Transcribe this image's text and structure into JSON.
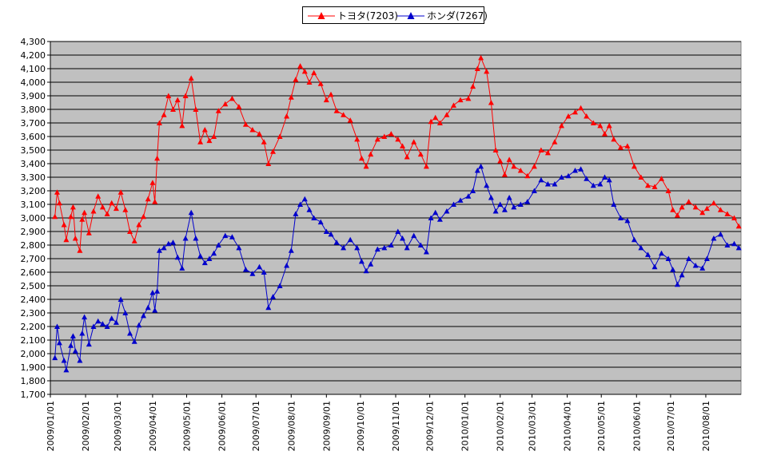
{
  "chart_data": {
    "type": "line",
    "title": "",
    "xlabel": "",
    "ylabel": "",
    "ylim": [
      1700,
      4300
    ],
    "ytick_step": 100,
    "y_tick_labels": [
      "1,700",
      "1,800",
      "1,900",
      "2,000",
      "2,100",
      "2,200",
      "2,300",
      "2,400",
      "2,500",
      "2,600",
      "2,700",
      "2,800",
      "2,900",
      "3,000",
      "3,100",
      "3,200",
      "3,300",
      "3,400",
      "3,500",
      "3,600",
      "3,700",
      "3,800",
      "3,900",
      "4,000",
      "4,100",
      "4,200",
      "4,300"
    ],
    "x_tick_labels": [
      "2009/01/01",
      "2009/02/01",
      "2009/03/01",
      "2009/04/01",
      "2009/05/01",
      "2009/06/01",
      "2009/07/01",
      "2009/08/01",
      "2009/09/01",
      "2009/10/01",
      "2009/11/01",
      "2009/12/01",
      "2010/01/01",
      "2010/02/01",
      "2010/03/01",
      "2010/04/01",
      "2010/05/01",
      "2010/06/01",
      "2010/07/01",
      "2010/08/01"
    ],
    "grid": true,
    "legend_position": "top",
    "plot_background": "#c0c0c0",
    "series": [
      {
        "name": "トヨタ(7203)",
        "color": "#ff0000",
        "points": [
          [
            "2009/01/05",
            3010
          ],
          [
            "2009/01/07",
            3190
          ],
          [
            "2009/01/09",
            3110
          ],
          [
            "2009/01/13",
            2950
          ],
          [
            "2009/01/15",
            2840
          ],
          [
            "2009/01/19",
            3010
          ],
          [
            "2009/01/21",
            3080
          ],
          [
            "2009/01/23",
            2850
          ],
          [
            "2009/01/27",
            2760
          ],
          [
            "2009/01/29",
            2990
          ],
          [
            "2009/01/31",
            3040
          ],
          [
            "2009/02/04",
            2890
          ],
          [
            "2009/02/08",
            3050
          ],
          [
            "2009/02/12",
            3160
          ],
          [
            "2009/02/16",
            3080
          ],
          [
            "2009/02/20",
            3030
          ],
          [
            "2009/02/24",
            3110
          ],
          [
            "2009/02/28",
            3070
          ],
          [
            "2009/03/04",
            3190
          ],
          [
            "2009/03/08",
            3060
          ],
          [
            "2009/03/12",
            2900
          ],
          [
            "2009/03/16",
            2830
          ],
          [
            "2009/03/20",
            2950
          ],
          [
            "2009/03/24",
            3010
          ],
          [
            "2009/03/28",
            3140
          ],
          [
            "2009/04/01",
            3260
          ],
          [
            "2009/04/03",
            3120
          ],
          [
            "2009/04/05",
            3440
          ],
          [
            "2009/04/07",
            3700
          ],
          [
            "2009/04/11",
            3760
          ],
          [
            "2009/04/15",
            3900
          ],
          [
            "2009/04/19",
            3800
          ],
          [
            "2009/04/23",
            3870
          ],
          [
            "2009/04/27",
            3680
          ],
          [
            "2009/04/30",
            3900
          ],
          [
            "2009/05/05",
            4030
          ],
          [
            "2009/05/09",
            3800
          ],
          [
            "2009/05/13",
            3560
          ],
          [
            "2009/05/17",
            3650
          ],
          [
            "2009/05/21",
            3570
          ],
          [
            "2009/05/25",
            3600
          ],
          [
            "2009/05/29",
            3790
          ],
          [
            "2009/06/04",
            3840
          ],
          [
            "2009/06/10",
            3880
          ],
          [
            "2009/06/16",
            3820
          ],
          [
            "2009/06/22",
            3690
          ],
          [
            "2009/06/28",
            3650
          ],
          [
            "2009/07/04",
            3620
          ],
          [
            "2009/07/08",
            3560
          ],
          [
            "2009/07/12",
            3400
          ],
          [
            "2009/07/16",
            3490
          ],
          [
            "2009/07/22",
            3600
          ],
          [
            "2009/07/28",
            3750
          ],
          [
            "2009/08/01",
            3890
          ],
          [
            "2009/08/05",
            4020
          ],
          [
            "2009/08/09",
            4120
          ],
          [
            "2009/08/13",
            4080
          ],
          [
            "2009/08/17",
            4000
          ],
          [
            "2009/08/21",
            4070
          ],
          [
            "2009/08/27",
            3990
          ],
          [
            "2009/09/01",
            3870
          ],
          [
            "2009/09/05",
            3910
          ],
          [
            "2009/09/10",
            3790
          ],
          [
            "2009/09/16",
            3760
          ],
          [
            "2009/09/22",
            3720
          ],
          [
            "2009/09/28",
            3580
          ],
          [
            "2009/10/02",
            3440
          ],
          [
            "2009/10/06",
            3380
          ],
          [
            "2009/10/10",
            3470
          ],
          [
            "2009/10/16",
            3580
          ],
          [
            "2009/10/22",
            3600
          ],
          [
            "2009/10/28",
            3620
          ],
          [
            "2009/11/03",
            3580
          ],
          [
            "2009/11/07",
            3530
          ],
          [
            "2009/11/11",
            3450
          ],
          [
            "2009/11/17",
            3560
          ],
          [
            "2009/11/23",
            3470
          ],
          [
            "2009/11/28",
            3380
          ],
          [
            "2009/12/02",
            3710
          ],
          [
            "2009/12/06",
            3740
          ],
          [
            "2009/12/10",
            3700
          ],
          [
            "2009/12/16",
            3760
          ],
          [
            "2009/12/22",
            3830
          ],
          [
            "2009/12/28",
            3870
          ],
          [
            "2010/01/04",
            3880
          ],
          [
            "2010/01/08",
            3970
          ],
          [
            "2010/01/12",
            4100
          ],
          [
            "2010/01/15",
            4180
          ],
          [
            "2010/01/20",
            4080
          ],
          [
            "2010/01/24",
            3850
          ],
          [
            "2010/01/28",
            3500
          ],
          [
            "2010/02/01",
            3420
          ],
          [
            "2010/02/05",
            3320
          ],
          [
            "2010/02/09",
            3430
          ],
          [
            "2010/02/13",
            3380
          ],
          [
            "2010/02/19",
            3350
          ],
          [
            "2010/02/25",
            3310
          ],
          [
            "2010/03/03",
            3380
          ],
          [
            "2010/03/09",
            3500
          ],
          [
            "2010/03/15",
            3480
          ],
          [
            "2010/03/21",
            3560
          ],
          [
            "2010/03/27",
            3680
          ],
          [
            "2010/04/02",
            3750
          ],
          [
            "2010/04/08",
            3780
          ],
          [
            "2010/04/13",
            3810
          ],
          [
            "2010/04/18",
            3750
          ],
          [
            "2010/04/24",
            3700
          ],
          [
            "2010/04/30",
            3680
          ],
          [
            "2010/05/04",
            3620
          ],
          [
            "2010/05/08",
            3680
          ],
          [
            "2010/05/12",
            3580
          ],
          [
            "2010/05/18",
            3520
          ],
          [
            "2010/05/24",
            3530
          ],
          [
            "2010/05/30",
            3380
          ],
          [
            "2010/06/05",
            3300
          ],
          [
            "2010/06/11",
            3240
          ],
          [
            "2010/06/17",
            3230
          ],
          [
            "2010/06/23",
            3290
          ],
          [
            "2010/06/29",
            3200
          ],
          [
            "2010/07/03",
            3060
          ],
          [
            "2010/07/07",
            3020
          ],
          [
            "2010/07/11",
            3080
          ],
          [
            "2010/07/17",
            3120
          ],
          [
            "2010/07/23",
            3080
          ],
          [
            "2010/07/29",
            3040
          ],
          [
            "2010/08/02",
            3070
          ],
          [
            "2010/08/08",
            3110
          ],
          [
            "2010/08/14",
            3060
          ],
          [
            "2010/08/20",
            3030
          ],
          [
            "2010/08/26",
            3000
          ],
          [
            "2010/08/30",
            2940
          ]
        ]
      },
      {
        "name": "ホンダ(7267)",
        "color": "#0000cc",
        "points": [
          [
            "2009/01/05",
            1970
          ],
          [
            "2009/01/07",
            2200
          ],
          [
            "2009/01/09",
            2080
          ],
          [
            "2009/01/13",
            1950
          ],
          [
            "2009/01/15",
            1880
          ],
          [
            "2009/01/19",
            2060
          ],
          [
            "2009/01/21",
            2130
          ],
          [
            "2009/01/23",
            2020
          ],
          [
            "2009/01/27",
            1950
          ],
          [
            "2009/01/29",
            2150
          ],
          [
            "2009/01/31",
            2270
          ],
          [
            "2009/02/04",
            2070
          ],
          [
            "2009/02/08",
            2200
          ],
          [
            "2009/02/12",
            2240
          ],
          [
            "2009/02/16",
            2220
          ],
          [
            "2009/02/20",
            2200
          ],
          [
            "2009/02/24",
            2260
          ],
          [
            "2009/02/28",
            2230
          ],
          [
            "2009/03/04",
            2400
          ],
          [
            "2009/03/08",
            2300
          ],
          [
            "2009/03/12",
            2150
          ],
          [
            "2009/03/16",
            2090
          ],
          [
            "2009/03/20",
            2210
          ],
          [
            "2009/03/24",
            2280
          ],
          [
            "2009/03/28",
            2340
          ],
          [
            "2009/04/01",
            2450
          ],
          [
            "2009/04/03",
            2320
          ],
          [
            "2009/04/05",
            2460
          ],
          [
            "2009/04/07",
            2760
          ],
          [
            "2009/04/11",
            2780
          ],
          [
            "2009/04/15",
            2810
          ],
          [
            "2009/04/19",
            2820
          ],
          [
            "2009/04/23",
            2710
          ],
          [
            "2009/04/27",
            2630
          ],
          [
            "2009/04/30",
            2850
          ],
          [
            "2009/05/05",
            3040
          ],
          [
            "2009/05/09",
            2850
          ],
          [
            "2009/05/13",
            2720
          ],
          [
            "2009/05/17",
            2670
          ],
          [
            "2009/05/21",
            2700
          ],
          [
            "2009/05/25",
            2740
          ],
          [
            "2009/05/29",
            2800
          ],
          [
            "2009/06/04",
            2870
          ],
          [
            "2009/06/10",
            2860
          ],
          [
            "2009/06/16",
            2780
          ],
          [
            "2009/06/22",
            2620
          ],
          [
            "2009/06/28",
            2590
          ],
          [
            "2009/07/04",
            2640
          ],
          [
            "2009/07/08",
            2600
          ],
          [
            "2009/07/12",
            2340
          ],
          [
            "2009/07/16",
            2420
          ],
          [
            "2009/07/22",
            2500
          ],
          [
            "2009/07/28",
            2650
          ],
          [
            "2009/08/01",
            2760
          ],
          [
            "2009/08/05",
            3030
          ],
          [
            "2009/08/09",
            3100
          ],
          [
            "2009/08/13",
            3140
          ],
          [
            "2009/08/17",
            3060
          ],
          [
            "2009/08/21",
            3000
          ],
          [
            "2009/08/27",
            2970
          ],
          [
            "2009/09/01",
            2900
          ],
          [
            "2009/09/05",
            2880
          ],
          [
            "2009/09/10",
            2820
          ],
          [
            "2009/09/16",
            2780
          ],
          [
            "2009/09/22",
            2840
          ],
          [
            "2009/09/28",
            2780
          ],
          [
            "2009/10/02",
            2680
          ],
          [
            "2009/10/06",
            2610
          ],
          [
            "2009/10/10",
            2660
          ],
          [
            "2009/10/16",
            2770
          ],
          [
            "2009/10/22",
            2780
          ],
          [
            "2009/10/28",
            2800
          ],
          [
            "2009/11/03",
            2900
          ],
          [
            "2009/11/07",
            2850
          ],
          [
            "2009/11/11",
            2780
          ],
          [
            "2009/11/17",
            2870
          ],
          [
            "2009/11/23",
            2800
          ],
          [
            "2009/11/28",
            2750
          ],
          [
            "2009/12/02",
            3000
          ],
          [
            "2009/12/06",
            3040
          ],
          [
            "2009/12/10",
            2990
          ],
          [
            "2009/12/16",
            3050
          ],
          [
            "2009/12/22",
            3100
          ],
          [
            "2009/12/28",
            3130
          ],
          [
            "2010/01/04",
            3160
          ],
          [
            "2010/01/08",
            3200
          ],
          [
            "2010/01/12",
            3350
          ],
          [
            "2010/01/15",
            3380
          ],
          [
            "2010/01/20",
            3240
          ],
          [
            "2010/01/24",
            3150
          ],
          [
            "2010/01/28",
            3050
          ],
          [
            "2010/02/01",
            3100
          ],
          [
            "2010/02/05",
            3060
          ],
          [
            "2010/02/09",
            3150
          ],
          [
            "2010/02/13",
            3080
          ],
          [
            "2010/02/19",
            3100
          ],
          [
            "2010/02/25",
            3120
          ],
          [
            "2010/03/03",
            3200
          ],
          [
            "2010/03/09",
            3280
          ],
          [
            "2010/03/15",
            3250
          ],
          [
            "2010/03/21",
            3250
          ],
          [
            "2010/03/27",
            3300
          ],
          [
            "2010/04/02",
            3310
          ],
          [
            "2010/04/08",
            3350
          ],
          [
            "2010/04/13",
            3360
          ],
          [
            "2010/04/18",
            3290
          ],
          [
            "2010/04/24",
            3240
          ],
          [
            "2010/04/30",
            3250
          ],
          [
            "2010/05/04",
            3300
          ],
          [
            "2010/05/08",
            3280
          ],
          [
            "2010/05/12",
            3100
          ],
          [
            "2010/05/18",
            3000
          ],
          [
            "2010/05/24",
            2980
          ],
          [
            "2010/05/30",
            2840
          ],
          [
            "2010/06/05",
            2780
          ],
          [
            "2010/06/11",
            2730
          ],
          [
            "2010/06/17",
            2640
          ],
          [
            "2010/06/23",
            2740
          ],
          [
            "2010/06/29",
            2700
          ],
          [
            "2010/07/03",
            2620
          ],
          [
            "2010/07/07",
            2510
          ],
          [
            "2010/07/11",
            2580
          ],
          [
            "2010/07/17",
            2700
          ],
          [
            "2010/07/23",
            2650
          ],
          [
            "2010/07/29",
            2630
          ],
          [
            "2010/08/02",
            2700
          ],
          [
            "2010/08/08",
            2850
          ],
          [
            "2010/08/14",
            2880
          ],
          [
            "2010/08/20",
            2800
          ],
          [
            "2010/08/26",
            2810
          ],
          [
            "2010/08/30",
            2780
          ]
        ]
      }
    ]
  }
}
